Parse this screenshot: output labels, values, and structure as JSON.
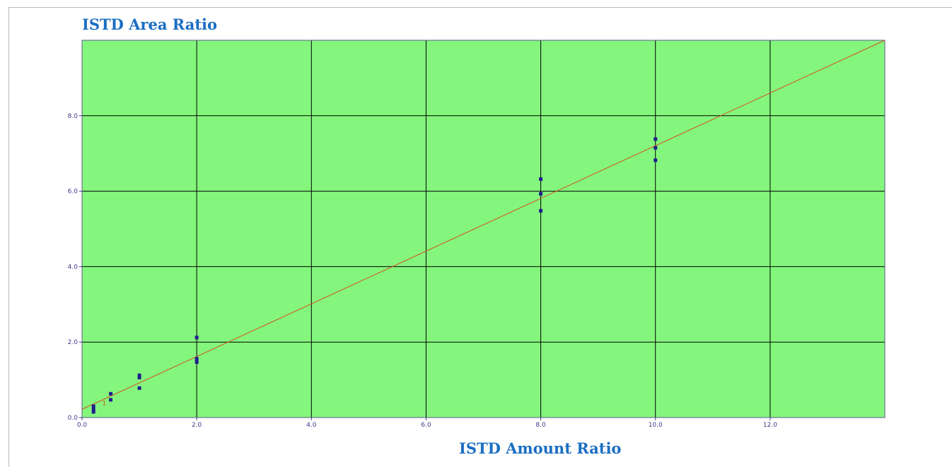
{
  "chart_data": {
    "type": "scatter",
    "title": "",
    "ylabel": "ISTD Area Ratio",
    "xlabel": "ISTD Amount Ratio",
    "xlim": [
      0.0,
      14.0
    ],
    "ylim": [
      0.0,
      10.0
    ],
    "x_ticks": [
      "0.0",
      "2.0",
      "4.0",
      "6.0",
      "8.0",
      "10.0",
      "12.0"
    ],
    "y_ticks": [
      "0.0",
      "2.0",
      "4.0",
      "6.0",
      "8.0"
    ],
    "grid": true,
    "background_color": "#84f67d",
    "grid_color": "#000000",
    "point_color": "#1f1f8f",
    "line_color": "#d4531a",
    "series": [
      {
        "values": [
          {
            "x": 0.2,
            "y": 0.15
          },
          {
            "x": 0.2,
            "y": 0.22
          },
          {
            "x": 0.2,
            "y": 0.3
          },
          {
            "x": 0.5,
            "y": 0.47
          },
          {
            "x": 0.5,
            "y": 0.63
          },
          {
            "x": 1.0,
            "y": 0.78
          },
          {
            "x": 1.0,
            "y": 1.06
          },
          {
            "x": 1.0,
            "y": 1.12
          },
          {
            "x": 2.0,
            "y": 1.47
          },
          {
            "x": 2.0,
            "y": 1.56
          },
          {
            "x": 2.0,
            "y": 2.12
          },
          {
            "x": 8.0,
            "y": 5.48
          },
          {
            "x": 8.0,
            "y": 5.93
          },
          {
            "x": 8.0,
            "y": 6.32
          },
          {
            "x": 10.0,
            "y": 6.82
          },
          {
            "x": 10.0,
            "y": 7.15
          },
          {
            "x": 10.0,
            "y": 7.38
          }
        ]
      }
    ],
    "fit_line": {
      "points": [
        {
          "x": 0.0,
          "y": 0.22
        },
        {
          "x": 14.0,
          "y": 10.0
        }
      ]
    },
    "annotations": [
      {
        "text": "1",
        "x": 0.35,
        "y": 0.33
      }
    ]
  }
}
